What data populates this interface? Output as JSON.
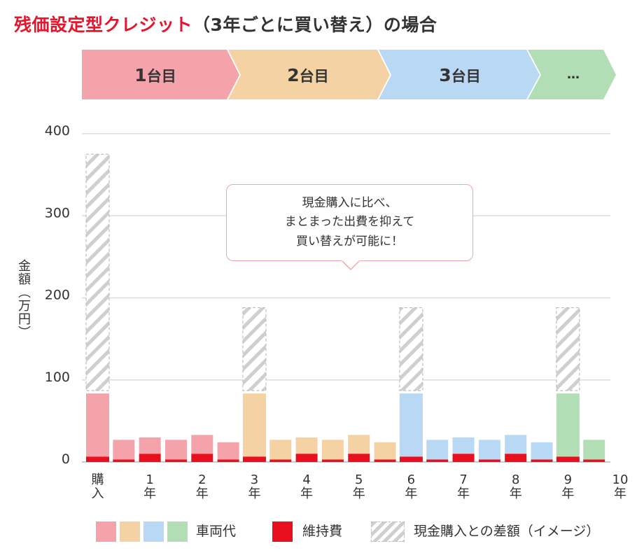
{
  "title": {
    "highlight": "残価設定型クレジット",
    "rest": "（3年ごとに買い替え）の場合"
  },
  "colors": {
    "title_accent": "#E8142B",
    "car_1": "#F4A3AB",
    "car_2": "#F5D2A3",
    "car_3": "#B9D8F4",
    "car_4": "#B2DEB5",
    "maintenance": "#E8101F",
    "hatch": "#CFCFCF",
    "callout_border": "#F2A4AC"
  },
  "banner": [
    {
      "num": "1",
      "suffix": "台目",
      "color_key": "car_1"
    },
    {
      "num": "2",
      "suffix": "台目",
      "color_key": "car_2"
    },
    {
      "num": "3",
      "suffix": "台目",
      "color_key": "car_3"
    },
    {
      "num": "…",
      "suffix": "",
      "color_key": "car_4"
    }
  ],
  "callout": {
    "lines": [
      "現金購入に比べ、",
      "まとまった出費を抑えて",
      "買い替えが可能に！"
    ]
  },
  "legend": {
    "vehicle_label": "車両代",
    "maintenance_label": "維持費",
    "difference_label": "現金購入との差額（イメージ）"
  },
  "chart_data": {
    "type": "bar",
    "stacked": true,
    "title": "残価設定型クレジット（3年ごとに買い替え）の場合",
    "ylabel": "金額（万円）",
    "xlabel": "",
    "ylim": [
      0,
      400
    ],
    "yticks": [
      0,
      100,
      200,
      300,
      400
    ],
    "xlim": [
      0,
      10
    ],
    "xticks": [
      {
        "value": 0,
        "lines": [
          "購",
          "入"
        ]
      },
      {
        "value": 1,
        "lines": [
          "1",
          "年"
        ]
      },
      {
        "value": 2,
        "lines": [
          "2",
          "年"
        ]
      },
      {
        "value": 3,
        "lines": [
          "3",
          "年"
        ]
      },
      {
        "value": 4,
        "lines": [
          "4",
          "年"
        ]
      },
      {
        "value": 5,
        "lines": [
          "5",
          "年"
        ]
      },
      {
        "value": 6,
        "lines": [
          "6",
          "年"
        ]
      },
      {
        "value": 7,
        "lines": [
          "7",
          "年"
        ]
      },
      {
        "value": 8,
        "lines": [
          "8",
          "年"
        ]
      },
      {
        "value": 9,
        "lines": [
          "9",
          "年"
        ]
      },
      {
        "value": 10,
        "lines": [
          "10",
          "年"
        ]
      }
    ],
    "grid": true,
    "legend_position": "bottom",
    "x": [
      0,
      0.5,
      1,
      1.5,
      2,
      2.5,
      3,
      3.5,
      4,
      4.5,
      5,
      5.5,
      6,
      6.5,
      7,
      7.5,
      8,
      8.5,
      9,
      9.5
    ],
    "car": [
      1,
      1,
      1,
      1,
      1,
      1,
      2,
      2,
      2,
      2,
      2,
      2,
      3,
      3,
      3,
      3,
      3,
      3,
      4,
      4
    ],
    "series": [
      {
        "name": "車両代",
        "values": [
          77,
          24,
          20,
          24,
          23,
          21,
          77,
          24,
          20,
          24,
          23,
          21,
          77,
          24,
          20,
          24,
          23,
          21,
          77,
          24
        ]
      },
      {
        "name": "維持費",
        "color": "#E8101F",
        "values": [
          6.5,
          3,
          10,
          3,
          10,
          3,
          6.5,
          3,
          10,
          3,
          10,
          3,
          6.5,
          3,
          10,
          3,
          10,
          3,
          6.5,
          3
        ]
      },
      {
        "name": "現金購入との差額（イメージ）",
        "ranges": [
          [
            87,
            375
          ],
          null,
          null,
          null,
          null,
          null,
          [
            87,
            188
          ],
          null,
          null,
          null,
          null,
          null,
          [
            87,
            188
          ],
          null,
          null,
          null,
          null,
          null,
          [
            87,
            188
          ],
          null
        ]
      }
    ]
  }
}
